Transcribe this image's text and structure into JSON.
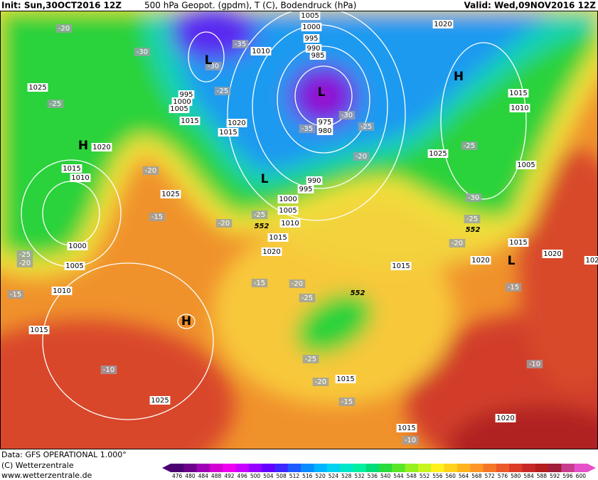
{
  "header": {
    "init": "Init: Sun,30OCT2016 12Z",
    "title": "500 hPa Geopot. (gpdm), T (C), Bodendruck (hPa)",
    "valid": "Valid: Wed,09NOV2016 12Z"
  },
  "labels": [
    "-20",
    "-30",
    "-35",
    "-30",
    "L",
    "1010",
    "1005",
    "1000",
    "995",
    "990",
    "985",
    "L",
    "975",
    "980",
    "-30",
    "-35",
    "-25",
    "1020",
    "H",
    "1025",
    "-25",
    "995",
    "1000",
    "1005",
    "-25",
    "1015",
    "1020",
    "1015",
    "H",
    "1020",
    "1015",
    "1010",
    "-20",
    "L",
    "-20",
    "1025",
    "-25",
    "1015",
    "1010",
    "1005",
    "990",
    "995",
    "1000",
    "1005",
    "1010",
    "1015",
    "1020",
    "-25",
    "552",
    "1025",
    "-15",
    "-20",
    "1000",
    "1005",
    "1010",
    "-25",
    "-20",
    "-15",
    "-15",
    "-20",
    "-25",
    "1015",
    "552",
    "H",
    "1015",
    "-10",
    "1025",
    "-25",
    "-20",
    "1015",
    "-15",
    "1015",
    "-10",
    "-30",
    "-25",
    "552",
    "-20",
    "1020",
    "L",
    "1015",
    "1020",
    "102",
    "-15",
    "-10",
    "1020"
  ],
  "footer": {
    "data": "Data: GFS OPERATIONAL 1.000°",
    "copyright": "(C) Wetterzentrale",
    "url": "www.wetterzentrale.de"
  },
  "scale": [
    476,
    480,
    484,
    488,
    492,
    496,
    500,
    504,
    508,
    512,
    516,
    520,
    524,
    528,
    532,
    536,
    540,
    544,
    548,
    552,
    556,
    560,
    564,
    568,
    572,
    576,
    580,
    584,
    588,
    592,
    596,
    600
  ]
}
